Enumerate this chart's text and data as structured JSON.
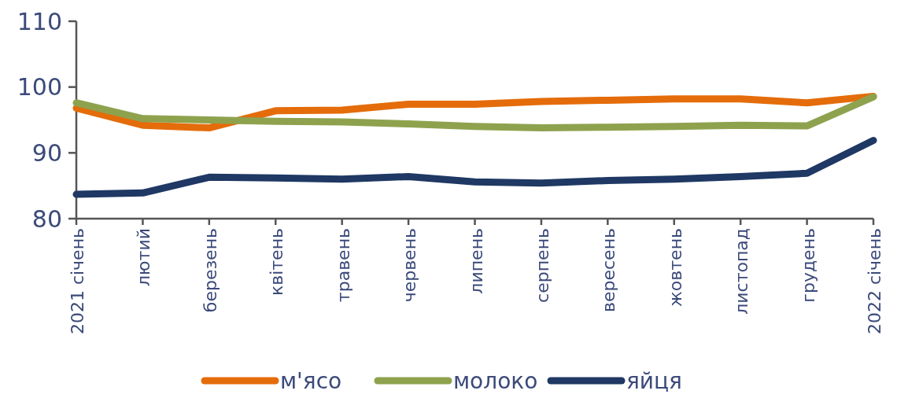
{
  "chart_data": {
    "type": "line",
    "categories": [
      "2021 січень",
      "лютий",
      "березень",
      "квітень",
      "травень",
      "червень",
      "липень",
      "серпень",
      "вересень",
      "жовтень",
      "листопад",
      "грудень",
      "2022 січень"
    ],
    "series": [
      {
        "name": "м'ясо",
        "color": "#e46c0a",
        "values": [
          96.8,
          94.2,
          93.8,
          96.4,
          96.5,
          97.4,
          97.4,
          97.8,
          98.0,
          98.2,
          98.2,
          97.6,
          98.6
        ]
      },
      {
        "name": "молоко",
        "color": "#8ea24e",
        "values": [
          97.6,
          95.2,
          95.0,
          94.8,
          94.7,
          94.4,
          94.0,
          93.8,
          93.9,
          94.0,
          94.2,
          94.1,
          98.5
        ]
      },
      {
        "name": "яйця",
        "color": "#1f3864",
        "values": [
          83.7,
          83.9,
          86.3,
          86.2,
          86.0,
          86.4,
          85.6,
          85.4,
          85.8,
          86.0,
          86.4,
          86.9,
          91.9
        ]
      }
    ],
    "ylim": [
      80,
      110
    ],
    "yticks": [
      80,
      90,
      100,
      110
    ],
    "legend": "bottom",
    "grid": false,
    "marker": "none",
    "line_style": "solid"
  }
}
